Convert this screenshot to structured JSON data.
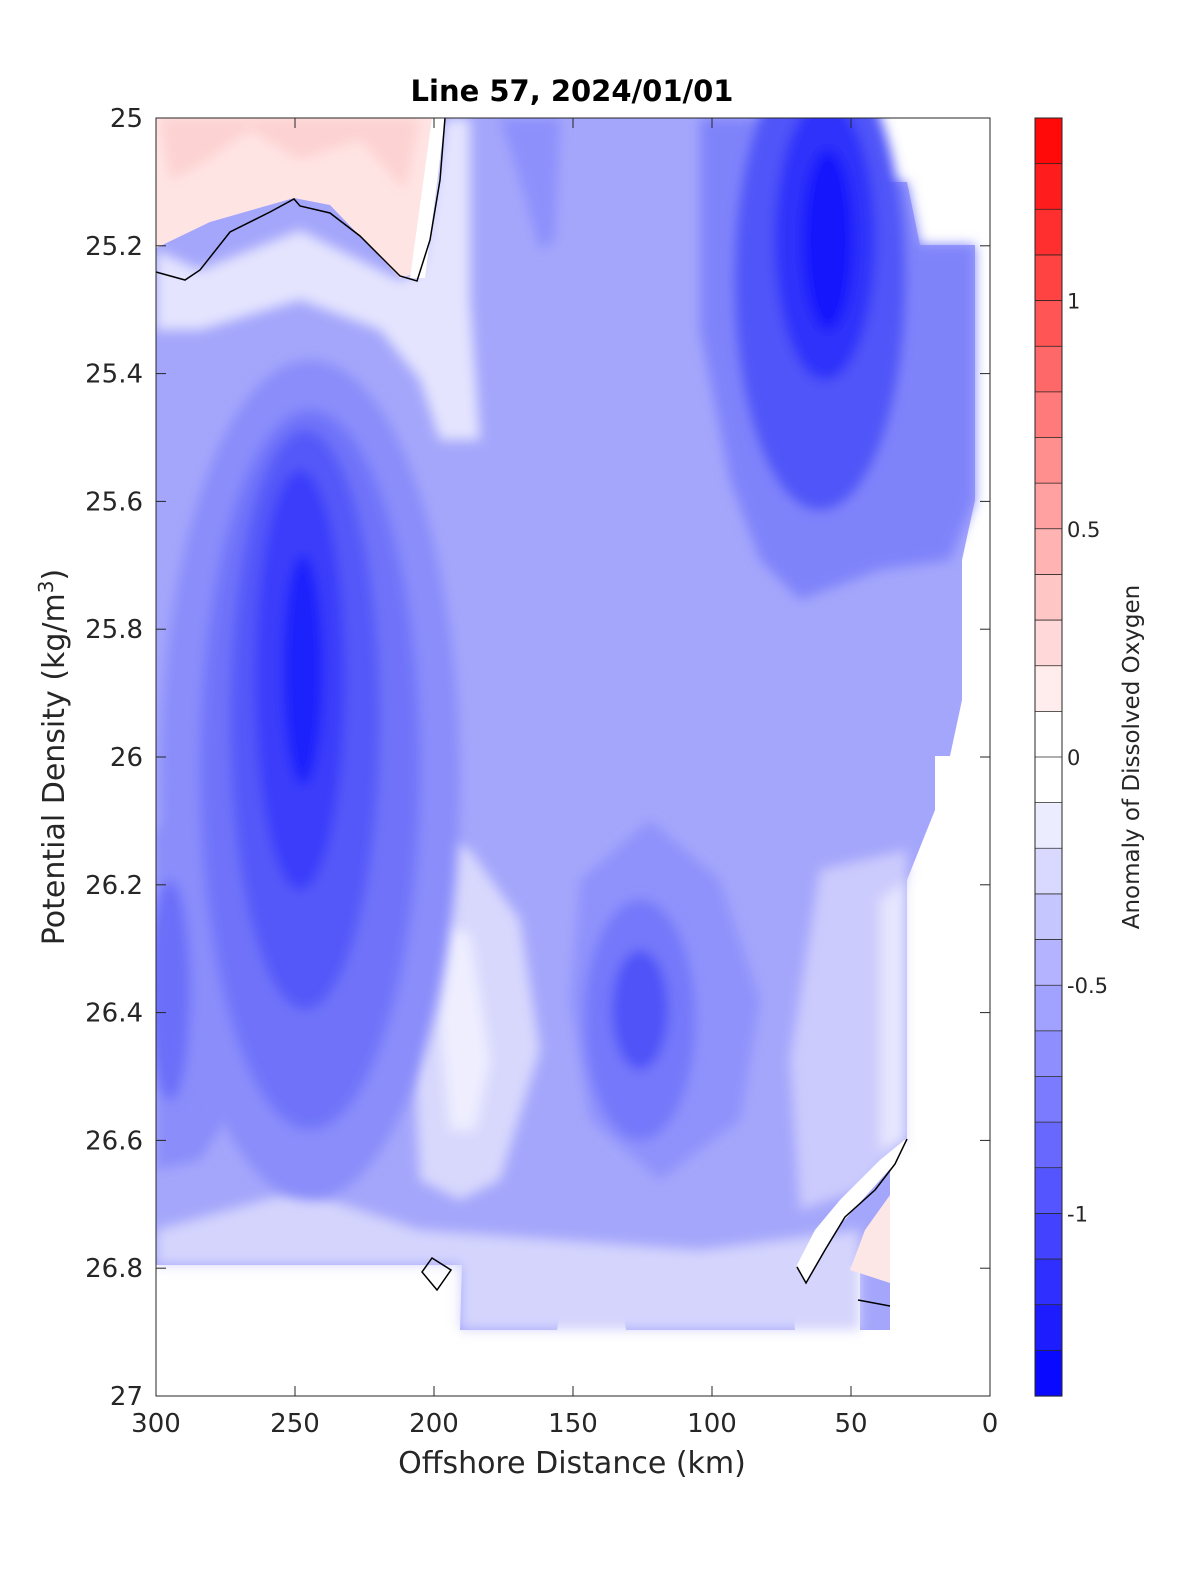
{
  "chart_data": {
    "type": "contour",
    "title": "Line 57, 2024/01/01",
    "xlabel": "Offshore Distance (km)",
    "ylabel_main": "Potential Density (kg/m",
    "ylabel_sup": "3",
    "ylabel_close": ")",
    "colorbar_label": "Anomaly of Dissolved Oxygen",
    "xlim": [
      300,
      0
    ],
    "ylim": [
      25,
      27
    ],
    "y_reversed": true,
    "x_ticks": [
      "300",
      "250",
      "200",
      "150",
      "100",
      "50",
      "0"
    ],
    "x_tick_values": [
      300,
      250,
      200,
      150,
      100,
      50,
      0
    ],
    "y_ticks": [
      "25",
      "25.2",
      "25.4",
      "25.6",
      "25.8",
      "26",
      "26.2",
      "26.4",
      "26.6",
      "26.8",
      "27"
    ],
    "y_tick_values": [
      25,
      25.2,
      25.4,
      25.6,
      25.8,
      26,
      26.2,
      26.4,
      26.6,
      26.8,
      27
    ],
    "colorbar_ticks": [
      "1",
      "0.5",
      "0",
      "-0.5",
      "-1"
    ],
    "colorbar_tick_values": [
      1,
      0.5,
      0,
      -0.5,
      -1
    ],
    "colorbar_range": [
      -1.4,
      1.4
    ],
    "colorbar_step": 0.1,
    "colormap": {
      "negative": "#0000ff",
      "zero": "#ffffff",
      "positive": "#ff0000"
    },
    "features": [
      {
        "kind": "anomaly-core",
        "x": 245,
        "y": 25.85,
        "value": -1.2
      },
      {
        "kind": "anomaly-core",
        "x": 125,
        "y": 26.4,
        "value": -0.95
      },
      {
        "kind": "anomaly-core",
        "x": 60,
        "y": 25.3,
        "value": -1.25
      },
      {
        "kind": "anomaly-core",
        "x": 295,
        "y": 26.4,
        "value": -0.9
      },
      {
        "kind": "positive-patch",
        "x": 250,
        "y": 25.05,
        "value": 0.25
      },
      {
        "kind": "positive-patch",
        "x": 35,
        "y": 26.78,
        "value": 0.15
      }
    ]
  }
}
